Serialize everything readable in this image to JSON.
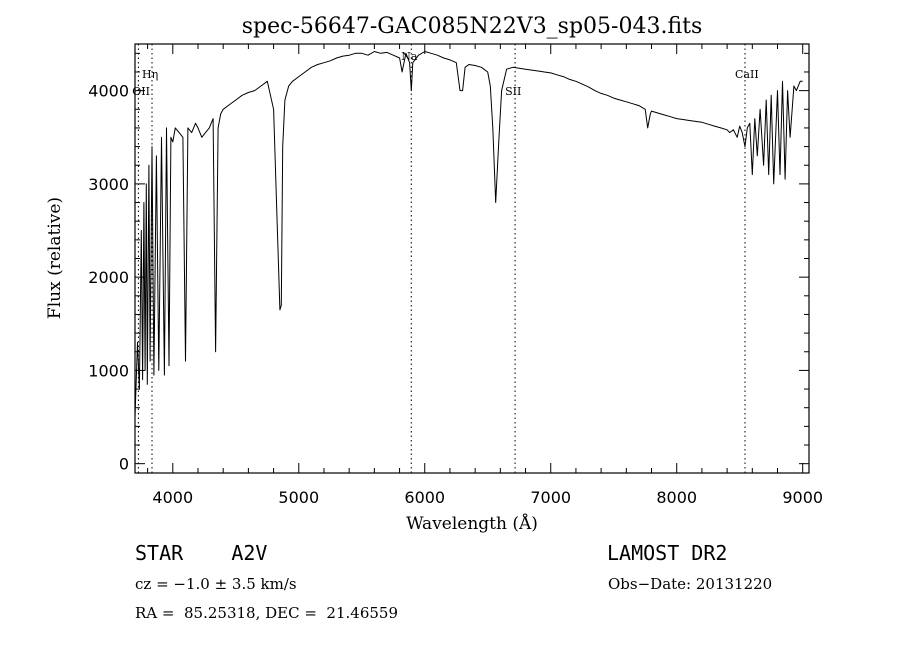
{
  "chart_data": {
    "type": "line",
    "title": "spec-56647-GAC085N22V3_sp05-043.fits",
    "xlabel": "Wavelength (Å)",
    "ylabel": "Flux (relative)",
    "xlim": [
      3700,
      9050
    ],
    "ylim": [
      -100,
      4500
    ],
    "x_ticks": [
      "4000",
      "5000",
      "6000",
      "7000",
      "8000",
      "9000"
    ],
    "y_ticks": [
      "0",
      "1000",
      "2000",
      "3000",
      "4000"
    ],
    "x_tick_values": [
      4000,
      5000,
      6000,
      7000,
      8000,
      9000
    ],
    "y_tick_values": [
      0,
      1000,
      2000,
      3000,
      4000
    ],
    "lines": [
      {
        "label": "Hη",
        "x": 3835
      },
      {
        "label": "OII",
        "x": 3727
      },
      {
        "label": "Na",
        "x": 5893
      },
      {
        "label": "SII",
        "x": 6717
      },
      {
        "label": "CaII",
        "x": 8542
      }
    ],
    "series": [
      {
        "x": [
          3700,
          3720,
          3735,
          3750,
          3760,
          3771,
          3780,
          3790,
          3798,
          3810,
          3820,
          3835,
          3850,
          3870,
          3889,
          3910,
          3933,
          3950,
          3970,
          3985,
          4000,
          4020,
          4050,
          4080,
          4101,
          4120,
          4150,
          4180,
          4200,
          4230,
          4260,
          4290,
          4320,
          4340,
          4360,
          4380,
          4400,
          4450,
          4500,
          4550,
          4600,
          4650,
          4700,
          4750,
          4800,
          4830,
          4850,
          4861,
          4872,
          4890,
          4920,
          4950,
          5000,
          5050,
          5100,
          5150,
          5200,
          5250,
          5300,
          5350,
          5400,
          5450,
          5500,
          5550,
          5600,
          5650,
          5700,
          5750,
          5800,
          5820,
          5850,
          5880,
          5893,
          5905,
          5950,
          6000,
          6050,
          6100,
          6150,
          6200,
          6250,
          6280,
          6300,
          6320,
          6350,
          6400,
          6450,
          6500,
          6520,
          6540,
          6563,
          6585,
          6610,
          6650,
          6700,
          6750,
          6800,
          6850,
          6900,
          6950,
          7000,
          7050,
          7100,
          7150,
          7200,
          7250,
          7300,
          7350,
          7400,
          7450,
          7500,
          7550,
          7600,
          7650,
          7700,
          7750,
          7770,
          7790,
          7800,
          7850,
          7900,
          7950,
          8000,
          8050,
          8100,
          8150,
          8200,
          8250,
          8300,
          8350,
          8400,
          8420,
          8450,
          8480,
          8500,
          8520,
          8542,
          8560,
          8580,
          8600,
          8620,
          8640,
          8662,
          8690,
          8710,
          8730,
          8750,
          8770,
          8800,
          8820,
          8840,
          8860,
          8880,
          8900,
          8930,
          8950,
          8980,
          9000
        ],
        "y": [
          500,
          1300,
          800,
          2500,
          900,
          2800,
          1000,
          3000,
          850,
          3200,
          1100,
          3400,
          950,
          3300,
          1000,
          3500,
          950,
          3600,
          1050,
          3500,
          3450,
          3600,
          3550,
          3500,
          1100,
          3600,
          3550,
          3650,
          3600,
          3500,
          3550,
          3600,
          3700,
          1200,
          3600,
          3750,
          3800,
          3850,
          3900,
          3950,
          3980,
          4000,
          4050,
          4100,
          3800,
          2500,
          1650,
          1700,
          3400,
          3900,
          4050,
          4100,
          4150,
          4200,
          4250,
          4280,
          4300,
          4320,
          4350,
          4370,
          4380,
          4400,
          4400,
          4380,
          4420,
          4400,
          4410,
          4380,
          4350,
          4200,
          4400,
          4300,
          4000,
          4300,
          4380,
          4420,
          4400,
          4380,
          4350,
          4330,
          4300,
          4000,
          4000,
          4250,
          4280,
          4270,
          4250,
          4200,
          4050,
          3600,
          2800,
          3400,
          4000,
          4230,
          4250,
          4240,
          4230,
          4220,
          4210,
          4200,
          4190,
          4170,
          4150,
          4120,
          4100,
          4070,
          4040,
          4000,
          3970,
          3950,
          3920,
          3900,
          3880,
          3860,
          3840,
          3800,
          3600,
          3750,
          3780,
          3760,
          3740,
          3720,
          3700,
          3690,
          3680,
          3670,
          3660,
          3640,
          3620,
          3600,
          3580,
          3550,
          3580,
          3500,
          3620,
          3550,
          3400,
          3600,
          3650,
          3100,
          3700,
          3300,
          3800,
          3200,
          3900,
          3100,
          3950,
          3000,
          4000,
          3100,
          4100,
          3050,
          4000,
          3500,
          4050,
          4000,
          4100,
          4100
        ]
      }
    ]
  },
  "footer": {
    "object_class": "STAR    A2V",
    "survey": "LAMOST DR2",
    "velocity": "cz = −1.0 ± 3.5 km/s",
    "obs_date": "Obs−Date: 20131220",
    "coordinates": "RA =  85.25318, DEC =  21.46559"
  }
}
